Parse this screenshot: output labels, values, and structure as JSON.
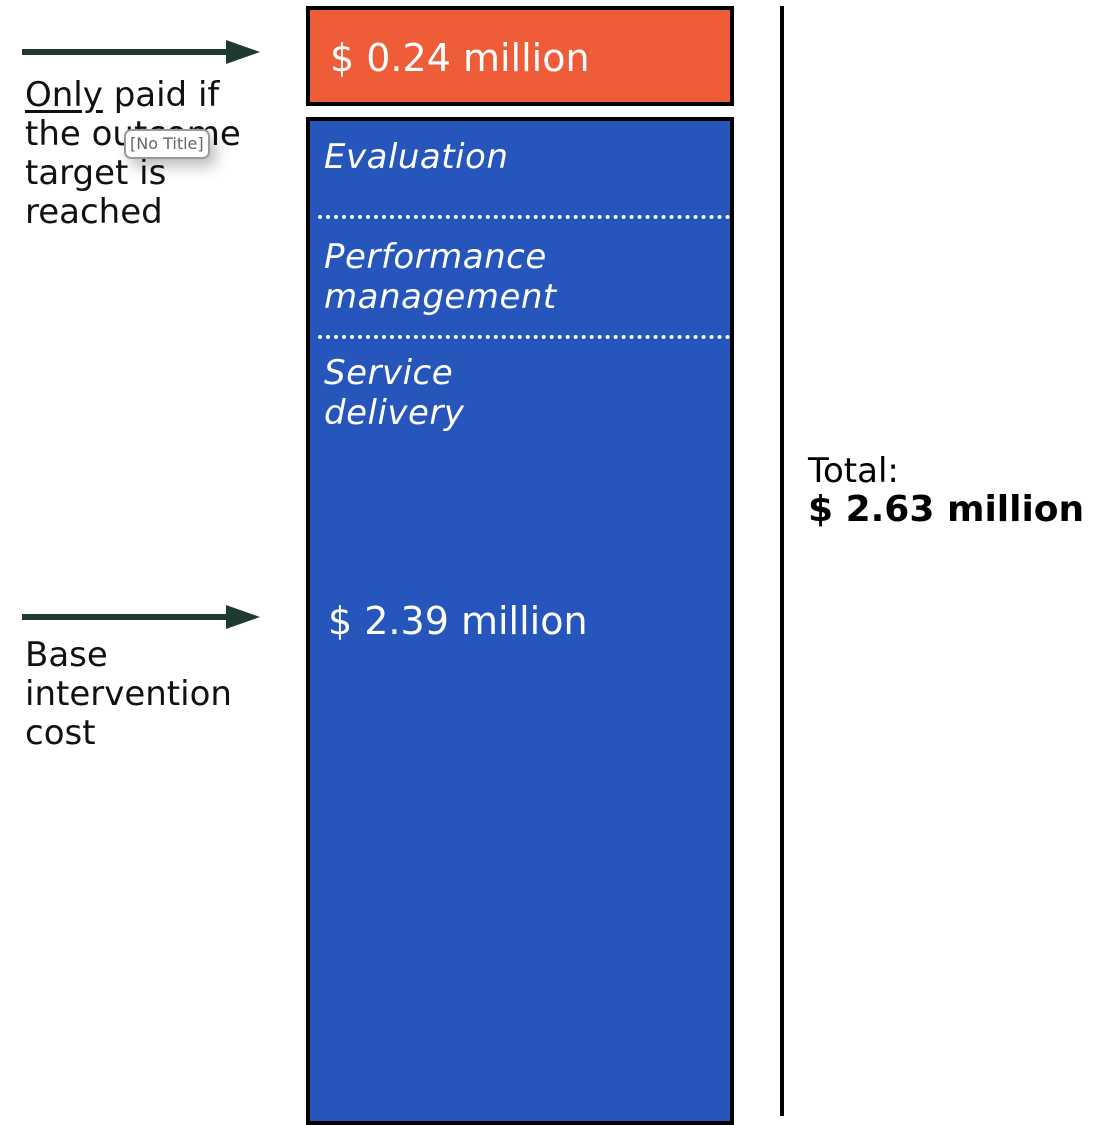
{
  "annotations": {
    "top": {
      "underlined_word": "Only",
      "rest_line1": " paid if",
      "line2": "the outcome",
      "line3": "target is",
      "line4": "reached"
    },
    "base": {
      "line1": "Base",
      "line2": "intervention",
      "line3": "cost"
    }
  },
  "tooltip": "[No Title]",
  "outcome_payment": {
    "amount": "$ 0.24 million"
  },
  "base_cost": {
    "segments": [
      {
        "line1": "Evaluation",
        "line2": ""
      },
      {
        "line1": "Performance",
        "line2": "management"
      },
      {
        "line1": "Service",
        "line2": "delivery"
      }
    ],
    "amount": "$ 2.39 million"
  },
  "total": {
    "label": "Total:",
    "value": "$ 2.63 million"
  },
  "colors": {
    "outcome_box": "#ee5c38",
    "base_box": "#2656bc",
    "arrow": "#1f3a2e",
    "text": "#111111"
  }
}
